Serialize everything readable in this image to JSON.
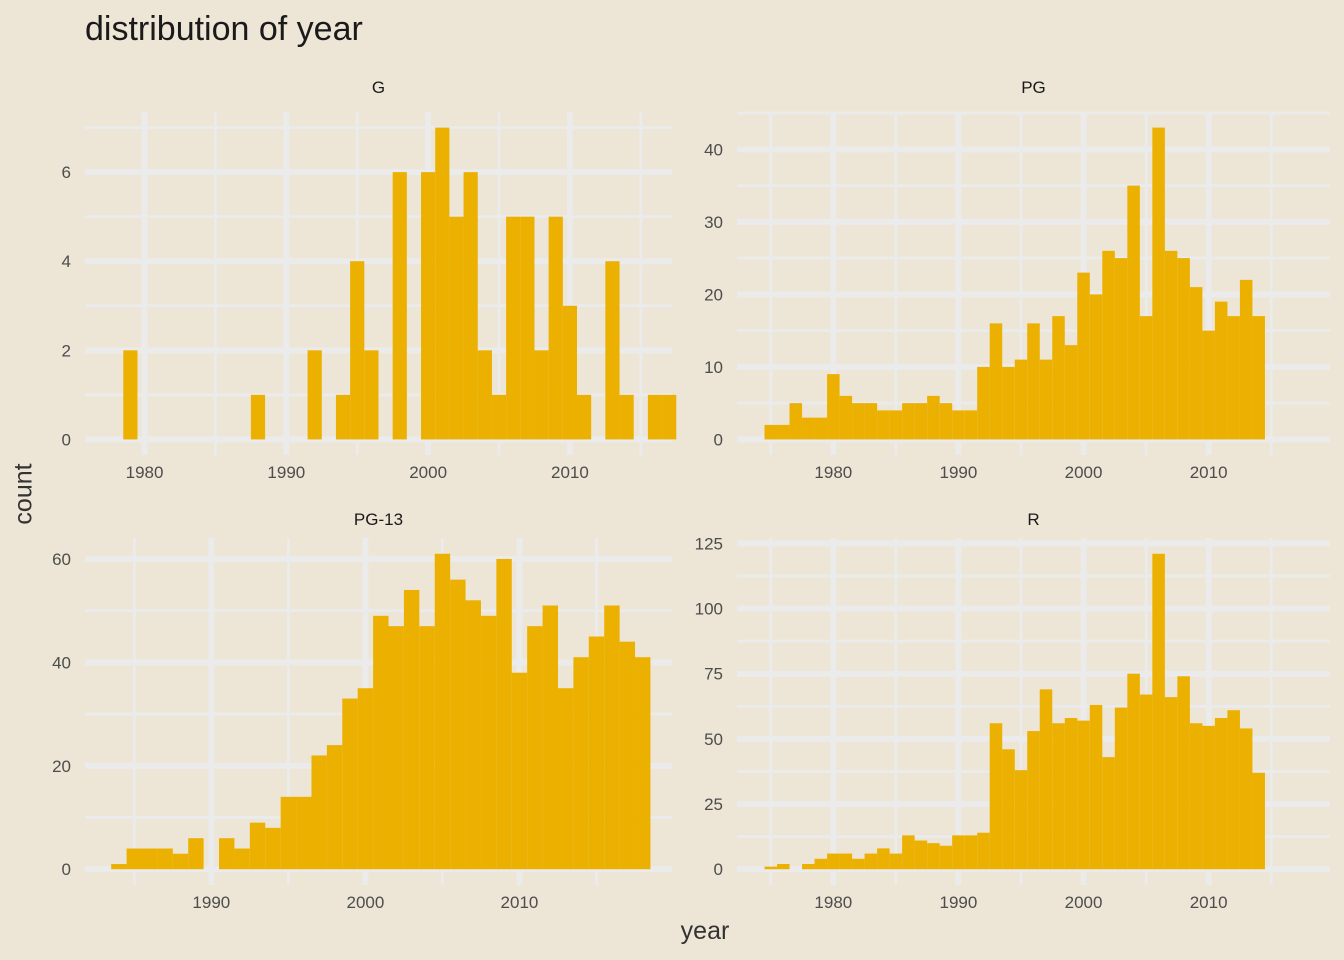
{
  "title": "distribution of year",
  "xlabel": "year",
  "ylabel": "count",
  "colors": {
    "background": "#ede5d5",
    "grid": "#ebebeb",
    "bar": "#ebb000"
  },
  "chart_data": {
    "type": "bar",
    "title": "distribution of year",
    "xlabel": "year",
    "ylabel": "count",
    "binwidth": 1,
    "grid": true,
    "facets": [
      {
        "label": "G",
        "xlim": [
          1975.8,
          2017.2
        ],
        "ylim": [
          -0.35,
          7.35
        ],
        "xticks": [
          1980,
          1990,
          2000,
          2010
        ],
        "yticks": [
          0,
          2,
          4,
          6
        ],
        "bins": [
          [
            1979,
            2
          ],
          [
            1988,
            1
          ],
          [
            1992,
            2
          ],
          [
            1994,
            1
          ],
          [
            1995,
            4
          ],
          [
            1996,
            2
          ],
          [
            1998,
            6
          ],
          [
            2000,
            6
          ],
          [
            2001,
            7
          ],
          [
            2002,
            5
          ],
          [
            2003,
            6
          ],
          [
            2004,
            2
          ],
          [
            2005,
            1
          ],
          [
            2006,
            5
          ],
          [
            2007,
            5
          ],
          [
            2008,
            2
          ],
          [
            2009,
            5
          ],
          [
            2010,
            3
          ],
          [
            2011,
            1
          ],
          [
            2013,
            4
          ],
          [
            2014,
            1
          ],
          [
            2016,
            1
          ],
          [
            2017,
            1
          ]
        ]
      },
      {
        "label": "PG",
        "xlim": [
          1972.3,
          2019.7
        ],
        "ylim": [
          -2.15,
          45.15
        ],
        "xticks": [
          1980,
          1990,
          2000,
          2010
        ],
        "yticks": [
          0,
          10,
          20,
          30,
          40
        ],
        "bins": [
          [
            1975,
            2
          ],
          [
            1976,
            2
          ],
          [
            1977,
            5
          ],
          [
            1978,
            3
          ],
          [
            1979,
            3
          ],
          [
            1980,
            9
          ],
          [
            1981,
            6
          ],
          [
            1982,
            5
          ],
          [
            1983,
            5
          ],
          [
            1984,
            4
          ],
          [
            1985,
            4
          ],
          [
            1986,
            5
          ],
          [
            1987,
            5
          ],
          [
            1988,
            6
          ],
          [
            1989,
            5
          ],
          [
            1990,
            4
          ],
          [
            1991,
            4
          ],
          [
            1992,
            10
          ],
          [
            1993,
            16
          ],
          [
            1994,
            10
          ],
          [
            1995,
            11
          ],
          [
            1996,
            16
          ],
          [
            1997,
            11
          ],
          [
            1998,
            17
          ],
          [
            1999,
            13
          ],
          [
            2000,
            23
          ],
          [
            2001,
            20
          ],
          [
            2002,
            26
          ],
          [
            2003,
            25
          ],
          [
            2004,
            35
          ],
          [
            2005,
            17
          ],
          [
            2006,
            43
          ],
          [
            2007,
            26
          ],
          [
            2008,
            25
          ],
          [
            2009,
            21
          ],
          [
            2010,
            15
          ],
          [
            2011,
            19
          ],
          [
            2012,
            17
          ],
          [
            2013,
            22
          ],
          [
            2014,
            17
          ]
        ]
      },
      {
        "label": "PG-13",
        "xlim": [
          1981.8,
          2019.9
        ],
        "ylim": [
          -3.05,
          64.05
        ],
        "xticks": [
          1990,
          2000,
          2010
        ],
        "yticks": [
          0,
          20,
          40,
          60
        ],
        "bins": [
          [
            1984,
            1
          ],
          [
            1985,
            4
          ],
          [
            1986,
            4
          ],
          [
            1987,
            4
          ],
          [
            1988,
            3
          ],
          [
            1989,
            6
          ],
          [
            1991,
            6
          ],
          [
            1992,
            4
          ],
          [
            1993,
            9
          ],
          [
            1994,
            8
          ],
          [
            1995,
            14
          ],
          [
            1996,
            14
          ],
          [
            1997,
            22
          ],
          [
            1998,
            24
          ],
          [
            1999,
            33
          ],
          [
            2000,
            35
          ],
          [
            2001,
            49
          ],
          [
            2002,
            47
          ],
          [
            2003,
            54
          ],
          [
            2004,
            47
          ],
          [
            2005,
            61
          ],
          [
            2006,
            56
          ],
          [
            2007,
            52
          ],
          [
            2008,
            49
          ],
          [
            2009,
            60
          ],
          [
            2010,
            38
          ],
          [
            2011,
            47
          ],
          [
            2012,
            51
          ],
          [
            2013,
            35
          ],
          [
            2014,
            41
          ],
          [
            2015,
            45
          ],
          [
            2016,
            51
          ],
          [
            2017,
            44
          ],
          [
            2018,
            41
          ]
        ]
      },
      {
        "label": "R",
        "xlim": [
          1972.3,
          2019.7
        ],
        "ylim": [
          -6.05,
          127.05
        ],
        "xticks": [
          1980,
          1990,
          2000,
          2010
        ],
        "yticks": [
          0,
          25,
          50,
          75,
          100,
          125
        ],
        "bins": [
          [
            1975,
            1
          ],
          [
            1976,
            2
          ],
          [
            1978,
            2
          ],
          [
            1979,
            4
          ],
          [
            1980,
            6
          ],
          [
            1981,
            6
          ],
          [
            1982,
            4
          ],
          [
            1983,
            6
          ],
          [
            1984,
            8
          ],
          [
            1985,
            6
          ],
          [
            1986,
            13
          ],
          [
            1987,
            11
          ],
          [
            1988,
            10
          ],
          [
            1989,
            9
          ],
          [
            1990,
            13
          ],
          [
            1991,
            13
          ],
          [
            1992,
            14
          ],
          [
            1993,
            56
          ],
          [
            1994,
            46
          ],
          [
            1995,
            38
          ],
          [
            1996,
            53
          ],
          [
            1997,
            69
          ],
          [
            1998,
            56
          ],
          [
            1999,
            58
          ],
          [
            2000,
            57
          ],
          [
            2001,
            63
          ],
          [
            2002,
            43
          ],
          [
            2003,
            62
          ],
          [
            2004,
            75
          ],
          [
            2005,
            67
          ],
          [
            2006,
            121
          ],
          [
            2007,
            66
          ],
          [
            2008,
            74
          ],
          [
            2009,
            56
          ],
          [
            2010,
            55
          ],
          [
            2011,
            58
          ],
          [
            2012,
            61
          ],
          [
            2013,
            54
          ],
          [
            2014,
            37
          ]
        ]
      }
    ]
  }
}
